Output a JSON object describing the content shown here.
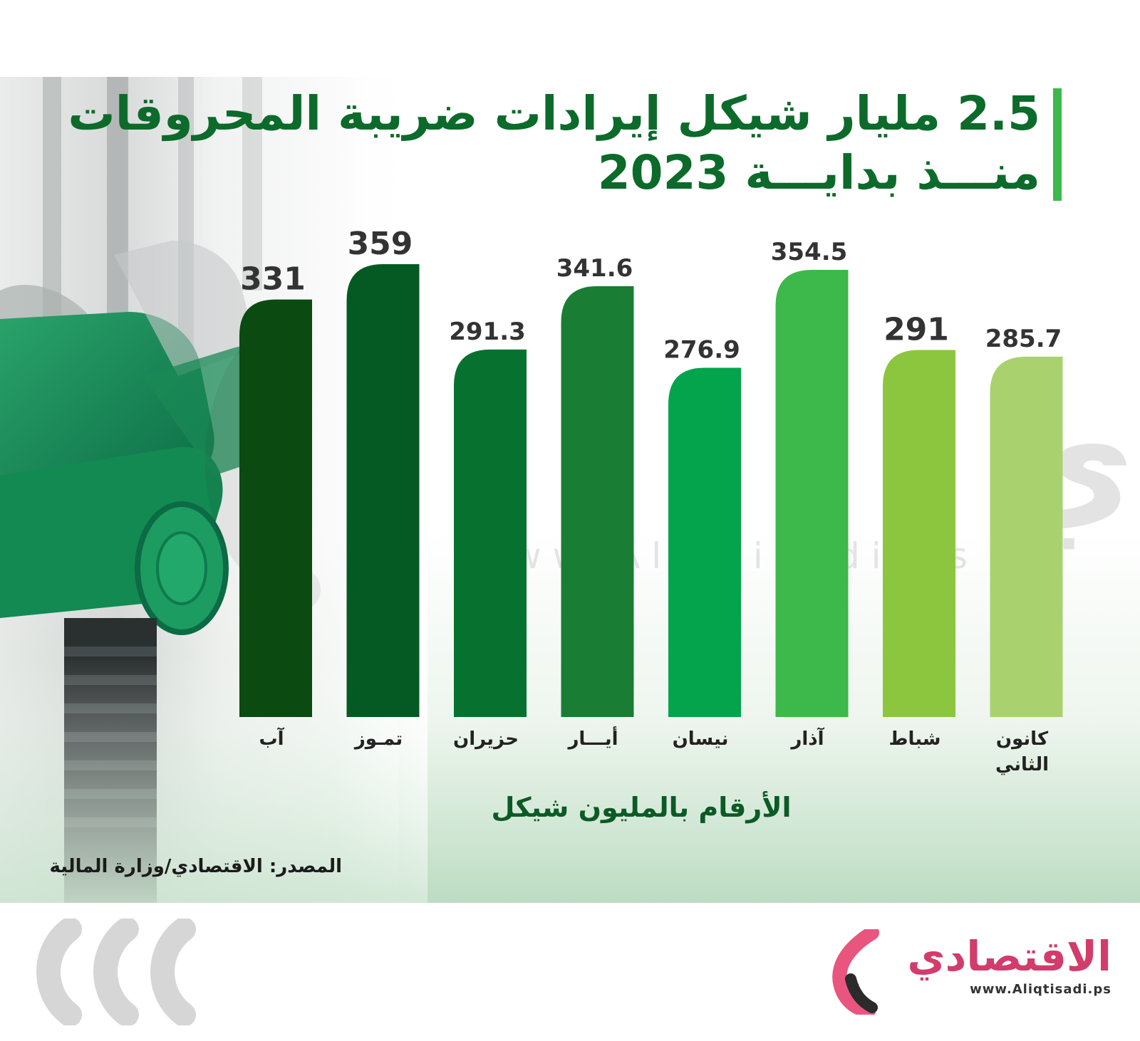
{
  "header": {
    "title_line1": "2.5 مليار شيكل إيرادات ضريبة المحروقات",
    "title_line2": "منـــذ بدايـــة 2023"
  },
  "colors": {
    "title": "#0c6b2a",
    "accent_bar": "#3db94c",
    "label_text": "#222222",
    "brand_pink": "#d23c6b"
  },
  "chart_data": {
    "type": "bar",
    "categories": [
      "آب",
      "تمـوز",
      "حزيران",
      "أيـــار",
      "نيسان",
      "آذار",
      "شباط",
      "كانون الثاني"
    ],
    "values": [
      331,
      359,
      291.3,
      341.6,
      276.9,
      354.5,
      291,
      285.7
    ],
    "value_labels": [
      "331",
      "359",
      "291.3",
      "341.6",
      "276.9",
      "354.5",
      "291",
      "285.7"
    ],
    "bar_colors": [
      "#0b4a10",
      "#055a23",
      "#077230",
      "#1a7d34",
      "#04a44c",
      "#3db84a",
      "#8cc63f",
      "#a9d26f"
    ],
    "unit_label": "الأرقام بالمليون شيكل",
    "title": "2.5 مليار شيكل إيرادات ضريبة المحروقات منذ بداية 2023",
    "xlabel": "",
    "ylabel": "",
    "ylim": [
      0,
      359
    ],
    "grid": false,
    "legend": "none"
  },
  "source": "المصدر: الاقتصادي/وزارة المالية",
  "watermark": {
    "text": "الاقتصادي",
    "url": "w w w . A l i q t i s a d i . p s"
  },
  "logo": {
    "text": "الاقتصادي",
    "url": "www.Aliqtisadi.ps"
  },
  "icons": {
    "pump": "fuel-pump-nozzle-icon",
    "chevrons": "chevron-left-icon",
    "logo_mark": "brand-logo-icon"
  }
}
